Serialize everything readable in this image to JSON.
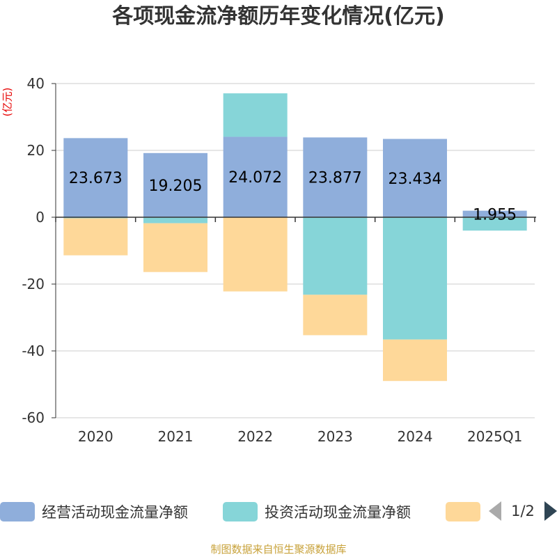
{
  "page": {
    "title": "各项现金流净额历年变化情况(亿元)",
    "unit_label": "(亿元)",
    "source": "制图数据来自恒生聚源数据库"
  },
  "legend": {
    "items": [
      {
        "label": "经营活动现金流量净额",
        "color": "#8faedb"
      },
      {
        "label": "投资活动现金流量净额",
        "color": "#86d5d8"
      },
      {
        "label": "",
        "color": "#fed899"
      }
    ],
    "pager": "1/2"
  },
  "chart_data": {
    "type": "bar",
    "stacked": true,
    "categories": [
      "2020",
      "2021",
      "2022",
      "2023",
      "2024",
      "2025Q1"
    ],
    "series": [
      {
        "name": "经营活动现金流量净额",
        "color": "#8faedb",
        "values": [
          23.673,
          19.205,
          24.072,
          23.877,
          23.434,
          1.955
        ],
        "labels": [
          "23.673",
          "19.205",
          "24.072",
          "23.877",
          "23.434",
          "1.955"
        ]
      },
      {
        "name": "投资活动现金流量净额",
        "color": "#86d5d8",
        "values": [
          -0.3,
          -1.8,
          13.0,
          -23.2,
          -36.6,
          -4.0
        ]
      },
      {
        "name": "",
        "color": "#fed899",
        "values": [
          -11.1,
          -14.6,
          -22.2,
          -12.1,
          -12.4,
          0
        ]
      }
    ],
    "ylim": [
      -60,
      40
    ],
    "yticks": [
      "40",
      "20",
      "0",
      "-20",
      "-40",
      "-60"
    ],
    "ytick_values": [
      40,
      20,
      0,
      -20,
      -40,
      -60
    ],
    "grid": true
  }
}
